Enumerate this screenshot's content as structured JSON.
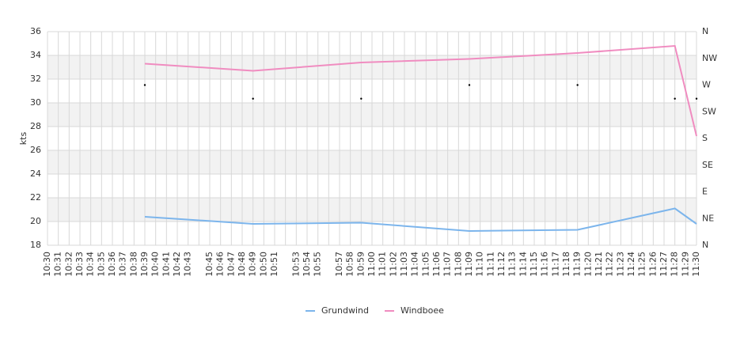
{
  "chart_data": {
    "type": "line",
    "y_label": "kts",
    "categories": [
      "10:30",
      "10:31",
      "10:32",
      "10:33",
      "10:34",
      "10:35",
      "10:36",
      "10:37",
      "10:38",
      "10:39",
      "10:40",
      "10:41",
      "10:42",
      "10:43",
      null,
      "10:45",
      "10:46",
      "10:47",
      "10:48",
      "10:49",
      "10:50",
      "10:51",
      null,
      "10:53",
      "10:54",
      "10:55",
      null,
      "10:57",
      "10:58",
      "10:59",
      "11:00",
      "11:01",
      "11:02",
      "11:03",
      "11:04",
      "11:05",
      "11:06",
      "11:07",
      "11:08",
      "11:09",
      "11:10",
      "11:11",
      "11:12",
      "11:13",
      "11:14",
      "11:15",
      "11:16",
      "11:17",
      "11:18",
      "11:19",
      "11:20",
      "11:21",
      "11:22",
      "11:23",
      "11:24",
      "11:25",
      "11:26",
      "11:27",
      "11:28",
      "11:29",
      "11:30"
    ],
    "x": [
      "10:39",
      "10:49",
      "10:59",
      "11:09",
      "11:19",
      "11:28",
      "11:30"
    ],
    "series": [
      {
        "name": "Grundwind",
        "color": "#7cb5ec",
        "values": [
          20.4,
          19.8,
          19.9,
          19.2,
          19.3,
          21.1,
          19.8
        ]
      },
      {
        "name": "Windboee",
        "color": "#f08cc0",
        "values": [
          33.3,
          32.7,
          33.4,
          33.7,
          34.2,
          34.8,
          27.2
        ]
      },
      {
        "color": "#000000",
        "axis": "y2",
        "marker": "dot",
        "values": [
          270,
          247,
          247,
          270,
          270,
          247,
          247
        ]
      }
    ],
    "ylim": [
      18,
      36
    ],
    "yticks": [
      18,
      20,
      22,
      24,
      26,
      28,
      30,
      32,
      34,
      36
    ],
    "y2lim": [
      0,
      360
    ],
    "y2ticks": [
      {
        "value": 0,
        "label": "N"
      },
      {
        "value": 45,
        "label": "NE"
      },
      {
        "value": 90,
        "label": "E"
      },
      {
        "value": 135,
        "label": "SE"
      },
      {
        "value": 180,
        "label": "S"
      },
      {
        "value": 225,
        "label": "SW"
      },
      {
        "value": 270,
        "label": "W"
      },
      {
        "value": 315,
        "label": "NW"
      },
      {
        "value": 360,
        "label": "N"
      }
    ],
    "grid": true,
    "bands": true,
    "legend": "bottom"
  }
}
